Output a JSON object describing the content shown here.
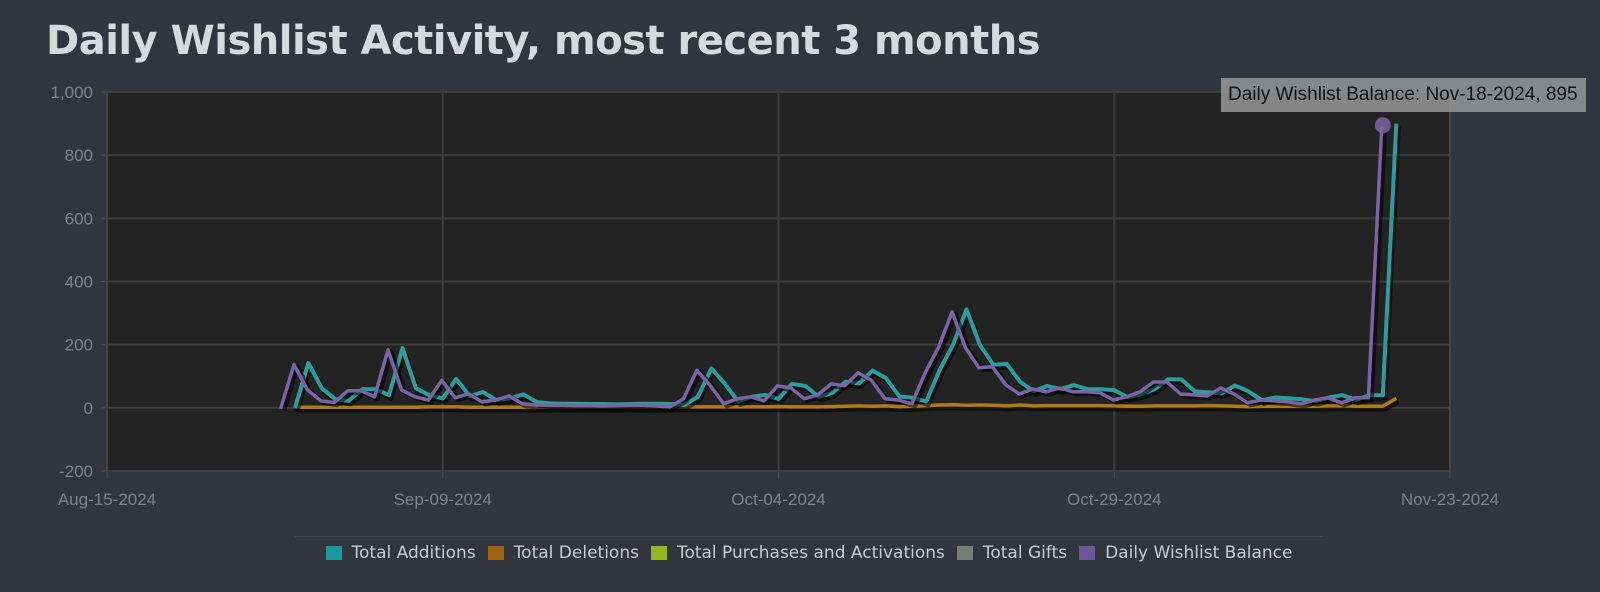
{
  "title": "Daily Wishlist Activity, most recent 3 months",
  "tooltip": {
    "text": "Daily Wishlist Balance: Nov-18-2024, 895"
  },
  "legend": [
    {
      "label": "Total Additions",
      "color": "#1a9a9a"
    },
    {
      "label": "Total Deletions",
      "color": "#a0620e"
    },
    {
      "label": "Total Purchases and Activations",
      "color": "#93b81c"
    },
    {
      "label": "Total Gifts",
      "color": "#7a7a7a"
    },
    {
      "label": "Daily Wishlist Balance",
      "color": "#6e5694"
    }
  ],
  "colors": {
    "page_bg": "#31353d",
    "plot_bg": "#232323",
    "grid": "#3d3d3d",
    "additions": "#2a9d9f",
    "deletions": "#b07a1a",
    "balance": "#7a64a6"
  },
  "chart_data": {
    "type": "line",
    "title": "Daily Wishlist Activity, most recent 3 months",
    "xlabel": "",
    "ylabel": "",
    "ylim": [
      -200,
      1000
    ],
    "yticks": [
      -200,
      0,
      200,
      400,
      600,
      800,
      1000
    ],
    "ytick_labels": [
      "-200",
      "0",
      "200",
      "400",
      "600",
      "800",
      "1,000"
    ],
    "xlim": [
      "Aug-15-2024",
      "Nov-23-2024"
    ],
    "xticks": [
      "Aug-15-2024",
      "Sep-09-2024",
      "Oct-04-2024",
      "Oct-29-2024",
      "Nov-23-2024"
    ],
    "grid": true,
    "legend_position": "bottom",
    "x_start": "Aug-28-2024",
    "x_end": "Nov-18-2024",
    "x_step_days": 1,
    "series": [
      {
        "name": "Total Additions",
        "values": [
          0,
          142,
          62,
          27,
          22,
          59,
          59,
          40,
          189,
          62,
          40,
          30,
          92,
          37,
          50,
          24,
          30,
          43,
          18,
          14,
          13,
          13,
          12,
          12,
          11,
          12,
          13,
          13,
          12,
          9,
          35,
          125,
          76,
          20,
          35,
          41,
          28,
          76,
          69,
          35,
          47,
          83,
          77,
          118,
          94,
          36,
          32,
          20,
          120,
          200,
          312,
          199,
          136,
          139,
          82,
          53,
          69,
          59,
          72,
          59,
          59,
          56,
          33,
          43,
          59,
          90,
          90,
          52,
          49,
          46,
          71,
          52,
          24,
          33,
          30,
          27,
          21,
          33,
          40,
          25,
          40,
          40,
          900
        ],
        "days_start_index": 1
      },
      {
        "name": "Total Deletions",
        "values": [
          2,
          2,
          2,
          2,
          2,
          2,
          2,
          2,
          2,
          2,
          3,
          3,
          3,
          2,
          2,
          2,
          2,
          2,
          2,
          2,
          2,
          2,
          2,
          2,
          2,
          2,
          2,
          2,
          3,
          3,
          3,
          3,
          3,
          3,
          3,
          3,
          4,
          3,
          3,
          3,
          4,
          5,
          6,
          5,
          6,
          4,
          5,
          7,
          9,
          10,
          8,
          9,
          8,
          6,
          9,
          6,
          7,
          7,
          7,
          7,
          7,
          6,
          5,
          5,
          6,
          6,
          6,
          6,
          7,
          6,
          5,
          4,
          5,
          5,
          5,
          5,
          5,
          6,
          6,
          5,
          5,
          5,
          30
        ],
        "days_start_index": 1
      },
      {
        "name": "Total Purchases and Activations",
        "values": []
      },
      {
        "name": "Total Gifts",
        "values": []
      },
      {
        "name": "Daily Wishlist Balance",
        "values": [
          0,
          140,
          60,
          25,
          20,
          57,
          57,
          38,
          187,
          60,
          38,
          28,
          90,
          35,
          48,
          22,
          28,
          41,
          16,
          12,
          11,
          11,
          10,
          10,
          9,
          10,
          11,
          11,
          9,
          6,
          32,
          122,
          73,
          16,
          32,
          38,
          25,
          73,
          66,
          32,
          44,
          79,
          73,
          114,
          90,
          32,
          28,
          16,
          114,
          196,
          307,
          193,
          130,
          133,
          76,
          47,
          63,
          54,
          66,
          54,
          54,
          51,
          28,
          38,
          54,
          85,
          85,
          47,
          44,
          41,
          66,
          47,
          19,
          28,
          25,
          22,
          16,
          28,
          35,
          19,
          35,
          35,
          895
        ],
        "days_start_index": 0
      }
    ],
    "highlight": {
      "series": "Daily Wishlist Balance",
      "date": "Nov-18-2024",
      "value": 895
    }
  }
}
